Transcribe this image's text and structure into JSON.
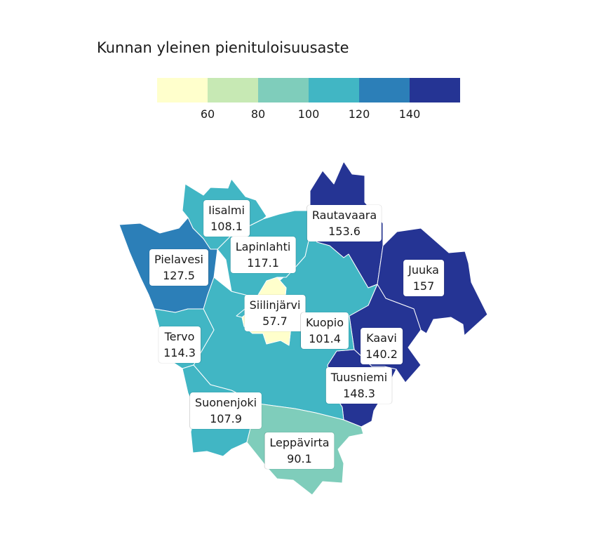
{
  "title": "Kunnan yleinen pienituloisuusaste",
  "legend": {
    "colors": [
      "#ffffcc",
      "#c7e9b4",
      "#7fcdbb",
      "#41b6c4",
      "#2c7fb8",
      "#253494"
    ],
    "ticks": [
      "60",
      "80",
      "100",
      "120",
      "140"
    ]
  },
  "municipalities": [
    {
      "name": "Iisalmi",
      "value": "108.1",
      "color": "#41b6c4"
    },
    {
      "name": "Rautavaara",
      "value": "153.6",
      "color": "#253494"
    },
    {
      "name": "Lapinlahti",
      "value": "117.1",
      "color": "#41b6c4"
    },
    {
      "name": "Pielavesi",
      "value": "127.5",
      "color": "#2c7fb8"
    },
    {
      "name": "Juuka",
      "value": "157",
      "color": "#253494"
    },
    {
      "name": "Siilinjärvi",
      "value": "57.7",
      "color": "#ffffcc"
    },
    {
      "name": "Kuopio",
      "value": "101.4",
      "color": "#41b6c4"
    },
    {
      "name": "Kaavi",
      "value": "140.2",
      "color": "#253494"
    },
    {
      "name": "Tervo",
      "value": "114.3",
      "color": "#41b6c4"
    },
    {
      "name": "Tuusniemi",
      "value": "148.3",
      "color": "#253494"
    },
    {
      "name": "Suonenjoki",
      "value": "107.9",
      "color": "#41b6c4"
    },
    {
      "name": "Leppävirta",
      "value": "90.1",
      "color": "#7fcdbb"
    }
  ]
}
